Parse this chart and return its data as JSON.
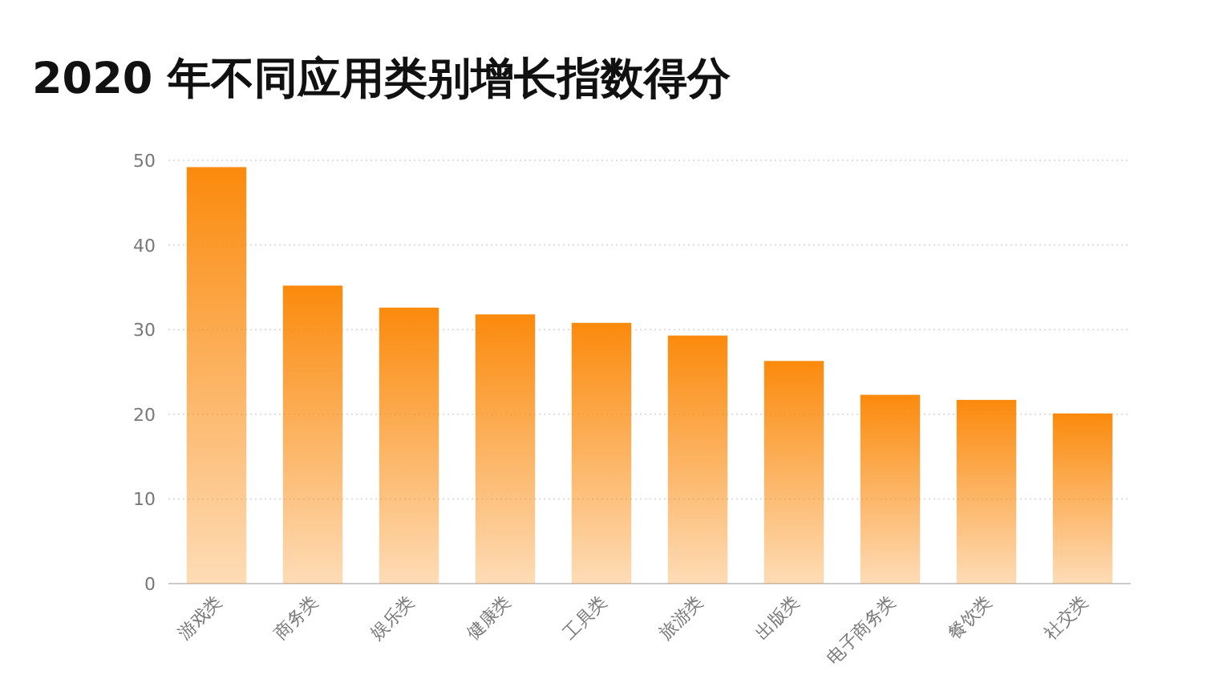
{
  "chart_data": {
    "type": "bar",
    "title": "2020 年不同应用类别增长指数得分",
    "categories": [
      "游戏类",
      "商务类",
      "娱乐类",
      "健康类",
      "工具类",
      "旅游类",
      "出版类",
      "电子商务类",
      "餐饮类",
      "社交类"
    ],
    "series": [
      {
        "color": "#fb8a0c",
        "values": [
          49.2,
          35.2,
          32.6,
          31.8,
          30.8,
          29.3,
          26.3,
          22.3,
          21.7,
          20.1
        ]
      }
    ],
    "ylim": [
      0,
      50
    ],
    "yticks": [
      0,
      10,
      20,
      30,
      40,
      50
    ],
    "grid": "y"
  }
}
